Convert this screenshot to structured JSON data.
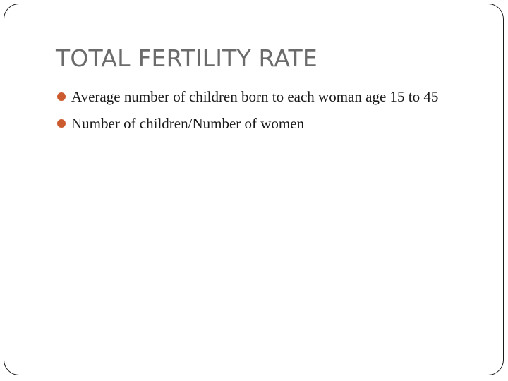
{
  "slide": {
    "title": "TOTAL FERTILITY RATE",
    "bullets": [
      {
        "text": "Average number of children born to each woman age 15 to 45"
      },
      {
        "text": "Number of children/Number of women"
      }
    ],
    "colors": {
      "title": "#6b6b6b",
      "bullet_marker": "#cc5a2f",
      "body_text": "#1a1a1a",
      "border": "#1a1a1a"
    },
    "icons": {
      "bullet_marker": "filled-circle-bullet-icon"
    }
  }
}
